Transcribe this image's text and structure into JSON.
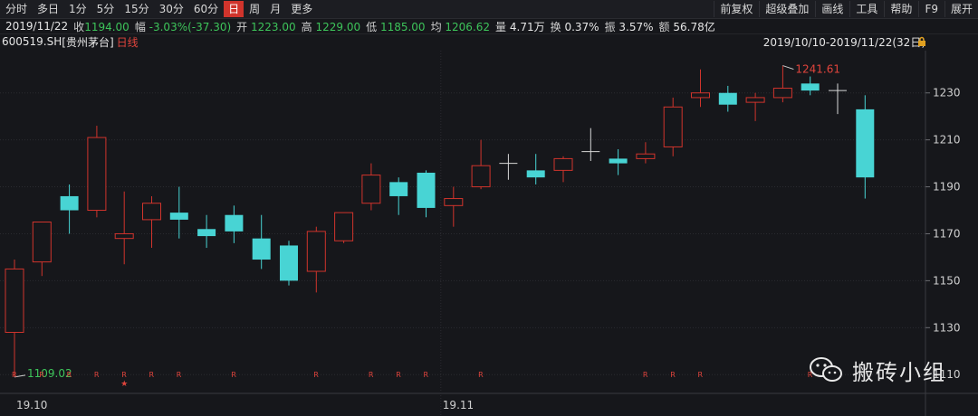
{
  "toolbar": {
    "periods": [
      "分时",
      "多日",
      "1分",
      "5分",
      "15分",
      "30分",
      "60分",
      "日",
      "周",
      "月",
      "更多"
    ],
    "active_period": "日",
    "right": [
      "前复权",
      "超级叠加",
      "画线",
      "工具",
      "帮助",
      "F9",
      "展开"
    ]
  },
  "quote": {
    "date": "2019/11/22",
    "close_label": "收",
    "close": "1194.00",
    "change_label": "幅",
    "change": "-3.03%(-37.30)",
    "open_label": "开",
    "open": "1223.00",
    "high_label": "高",
    "high": "1229.00",
    "low_label": "低",
    "low": "1185.00",
    "avg_label": "均",
    "avg": "1206.62",
    "volume_label": "量",
    "volume": "4.71万",
    "turnover_label": "换",
    "turnover": "0.37%",
    "amplitude_label": "振",
    "amplitude": "3.57%",
    "amount_label": "额",
    "amount": "56.78亿"
  },
  "stock": {
    "code": "600519.SH",
    "name": "[贵州茅台]",
    "line_type": "日线"
  },
  "range": "2019/10/10-2019/11/22(32日)",
  "colors": {
    "up": "#d0342c",
    "down": "#48d4d4",
    "grid": "#2a2b30",
    "bg": "#16171b"
  },
  "watermark": {
    "icon": "wechat-icon",
    "text": "搬砖小组"
  },
  "chart_data": {
    "type": "candlestick",
    "ylim": [
      1102,
      1248
    ],
    "yticks": [
      1110,
      1130,
      1150,
      1170,
      1190,
      1210,
      1230
    ],
    "x_labels": [
      {
        "index": 0,
        "label": "19.10"
      },
      {
        "index": 16,
        "label": "19.11"
      }
    ],
    "max_annotation": {
      "index": 28,
      "value": "1241.61"
    },
    "min_annotation": {
      "index": 0,
      "value": "1109.02"
    },
    "candles": [
      {
        "o": 1128,
        "h": 1159,
        "l": 1109,
        "c": 1155
      },
      {
        "o": 1158,
        "h": 1175,
        "l": 1152,
        "c": 1175
      },
      {
        "o": 1186,
        "h": 1191,
        "l": 1170,
        "c": 1180
      },
      {
        "o": 1180,
        "h": 1216,
        "l": 1177,
        "c": 1211
      },
      {
        "o": 1168,
        "h": 1188,
        "l": 1157,
        "c": 1170
      },
      {
        "o": 1176,
        "h": 1186,
        "l": 1164,
        "c": 1183
      },
      {
        "o": 1179,
        "h": 1190,
        "l": 1168,
        "c": 1176
      },
      {
        "o": 1172,
        "h": 1178,
        "l": 1164,
        "c": 1169
      },
      {
        "o": 1178,
        "h": 1182,
        "l": 1166,
        "c": 1171
      },
      {
        "o": 1168,
        "h": 1178,
        "l": 1155,
        "c": 1159
      },
      {
        "o": 1165,
        "h": 1167,
        "l": 1148,
        "c": 1150
      },
      {
        "o": 1154,
        "h": 1173,
        "l": 1145,
        "c": 1171
      },
      {
        "o": 1167,
        "h": 1179,
        "l": 1166,
        "c": 1179
      },
      {
        "o": 1183,
        "h": 1200,
        "l": 1180,
        "c": 1195
      },
      {
        "o": 1192,
        "h": 1194,
        "l": 1178,
        "c": 1186
      },
      {
        "o": 1196,
        "h": 1197,
        "l": 1177,
        "c": 1181
      },
      {
        "o": 1182,
        "h": 1190,
        "l": 1173,
        "c": 1185
      },
      {
        "o": 1190,
        "h": 1210,
        "l": 1189,
        "c": 1199
      },
      {
        "o": 1200,
        "h": 1204,
        "l": 1193,
        "c": 1200
      },
      {
        "o": 1197,
        "h": 1204,
        "l": 1191,
        "c": 1194
      },
      {
        "o": 1197,
        "h": 1203,
        "l": 1192,
        "c": 1202
      },
      {
        "o": 1205,
        "h": 1215,
        "l": 1201,
        "c": 1205
      },
      {
        "o": 1202,
        "h": 1206,
        "l": 1195,
        "c": 1200
      },
      {
        "o": 1202,
        "h": 1209,
        "l": 1200,
        "c": 1204
      },
      {
        "o": 1207,
        "h": 1228,
        "l": 1203,
        "c": 1224
      },
      {
        "o": 1228,
        "h": 1240,
        "l": 1224,
        "c": 1230
      },
      {
        "o": 1230,
        "h": 1233,
        "l": 1222,
        "c": 1225
      },
      {
        "o": 1226,
        "h": 1230,
        "l": 1218,
        "c": 1228
      },
      {
        "o": 1228,
        "h": 1241.61,
        "l": 1226,
        "c": 1232
      },
      {
        "o": 1234,
        "h": 1237,
        "l": 1229,
        "c": 1231
      },
      {
        "o": 1231,
        "h": 1234,
        "l": 1221,
        "c": 1231
      },
      {
        "o": 1223,
        "h": 1229,
        "l": 1185,
        "c": 1194
      }
    ],
    "markers": [
      {
        "index": 0,
        "label": "R"
      },
      {
        "index": 1,
        "label": "R"
      },
      {
        "index": 2,
        "label": "R"
      },
      {
        "index": 3,
        "label": "R"
      },
      {
        "index": 4,
        "label": "R"
      },
      {
        "index": 5,
        "label": "R"
      },
      {
        "index": 6,
        "label": "R"
      },
      {
        "index": 8,
        "label": "R"
      },
      {
        "index": 11,
        "label": "R"
      },
      {
        "index": 13,
        "label": "R"
      },
      {
        "index": 14,
        "label": "R"
      },
      {
        "index": 15,
        "label": "R"
      },
      {
        "index": 17,
        "label": "R"
      },
      {
        "index": 23,
        "label": "R"
      },
      {
        "index": 24,
        "label": "R"
      },
      {
        "index": 25,
        "label": "R"
      },
      {
        "index": 29,
        "label": "R"
      }
    ],
    "star_index": 4,
    "star_label": "★"
  }
}
